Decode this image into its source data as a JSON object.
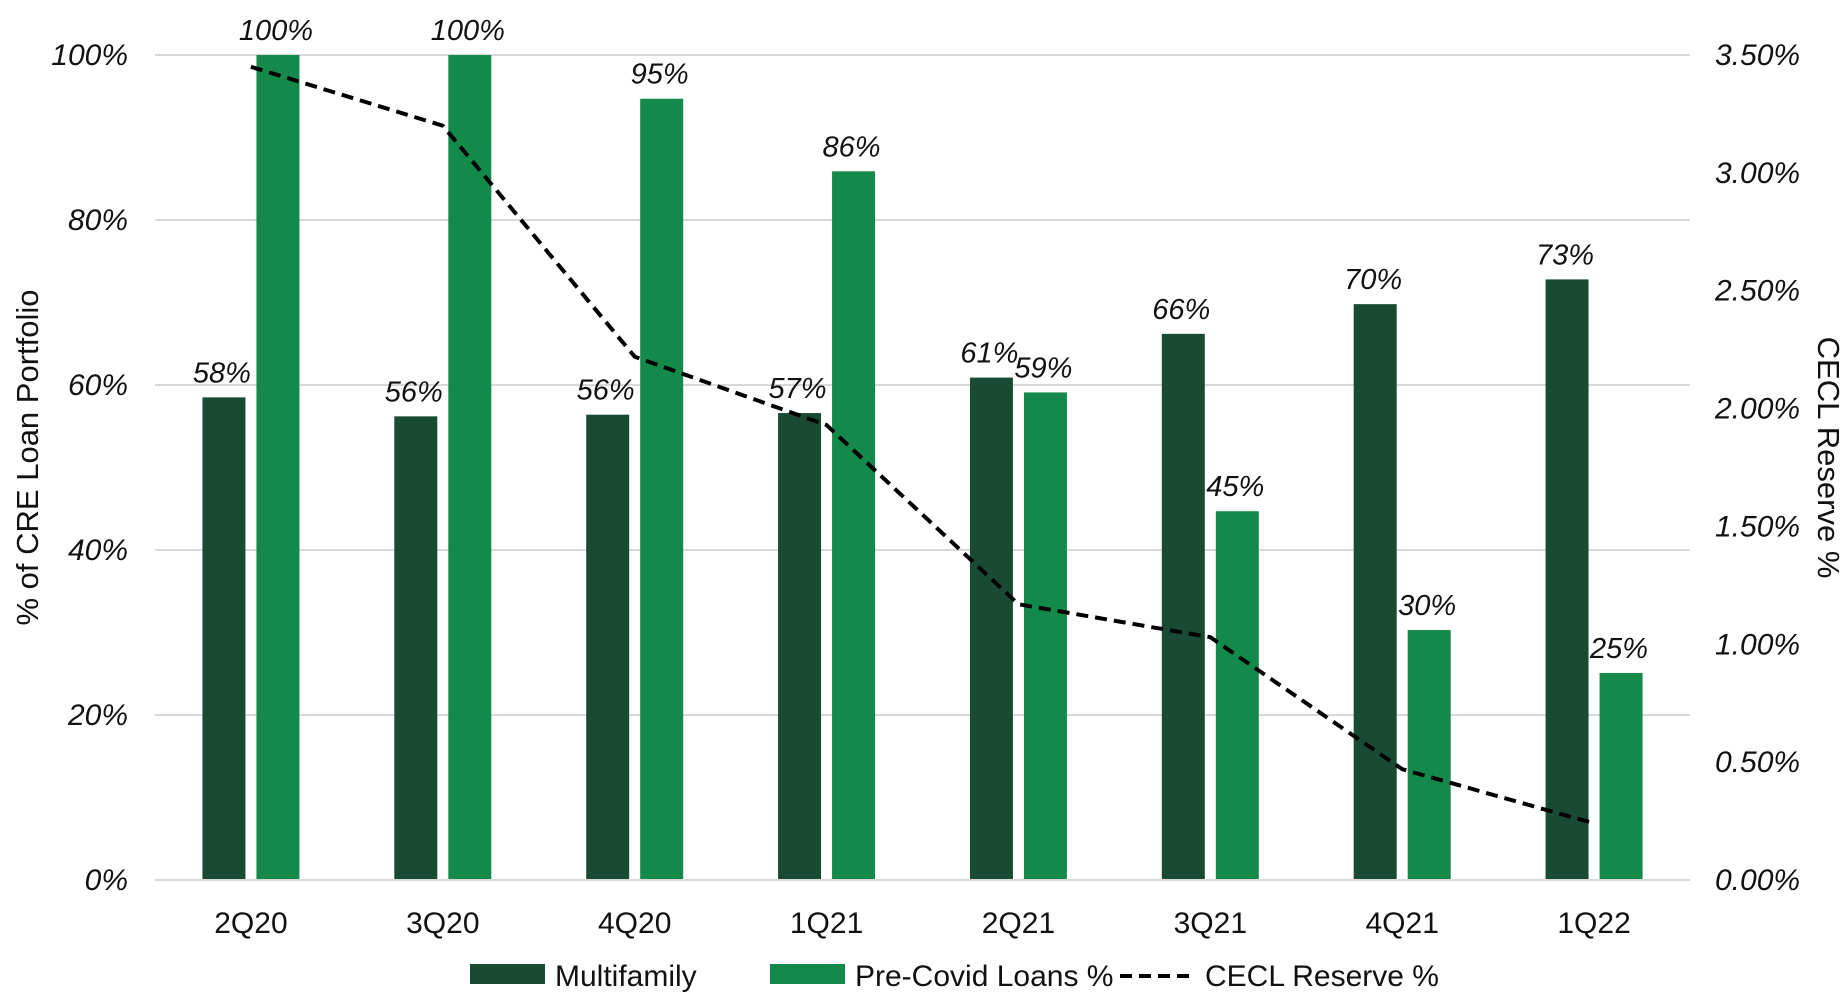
{
  "chart_data": {
    "type": "bar",
    "categories": [
      "2Q20",
      "3Q20",
      "4Q20",
      "1Q21",
      "2Q21",
      "3Q21",
      "4Q21",
      "1Q22"
    ],
    "series": [
      {
        "name": "Multifamily",
        "type": "bar",
        "axis": "left",
        "color": "#194a34",
        "values": [
          58.5,
          56.2,
          56.4,
          56.6,
          60.9,
          66.2,
          69.8,
          72.8
        ],
        "labels": [
          "58%",
          "56%",
          "56%",
          "57%",
          "61%",
          "66%",
          "70%",
          "73%"
        ]
      },
      {
        "name": "Pre-Covid Loans %",
        "type": "bar",
        "axis": "left",
        "color": "#138a4a",
        "values": [
          100,
          100,
          94.7,
          85.9,
          59.1,
          44.7,
          30.3,
          25.1
        ],
        "labels": [
          "100%",
          "100%",
          "95%",
          "86%",
          "59%",
          "45%",
          "30%",
          "25%"
        ]
      },
      {
        "name": "CECL Reserve %",
        "type": "line",
        "style": "dashed",
        "axis": "right",
        "color": "#000000",
        "values": [
          3.45,
          3.2,
          2.22,
          1.93,
          1.17,
          1.03,
          0.47,
          0.24
        ]
      }
    ],
    "left_axis": {
      "label": "% of CRE Loan Portfolio",
      "ylim": [
        0,
        100
      ],
      "ticks": [
        0,
        20,
        40,
        60,
        80,
        100
      ],
      "tick_labels": [
        "0%",
        "20%",
        "40%",
        "60%",
        "80%",
        "100%"
      ]
    },
    "right_axis": {
      "label": "CECL Reserve %",
      "ylim": [
        0,
        3.5
      ],
      "ticks": [
        0,
        0.5,
        1,
        1.5,
        2,
        2.5,
        3,
        3.5
      ],
      "tick_labels": [
        "0.00%",
        "0.50%",
        "1.00%",
        "1.50%",
        "2.00%",
        "2.50%",
        "3.00%",
        "3.50%"
      ]
    },
    "grid": true,
    "gridline_color": "#d9d9d9",
    "legend": {
      "position": "bottom"
    }
  }
}
